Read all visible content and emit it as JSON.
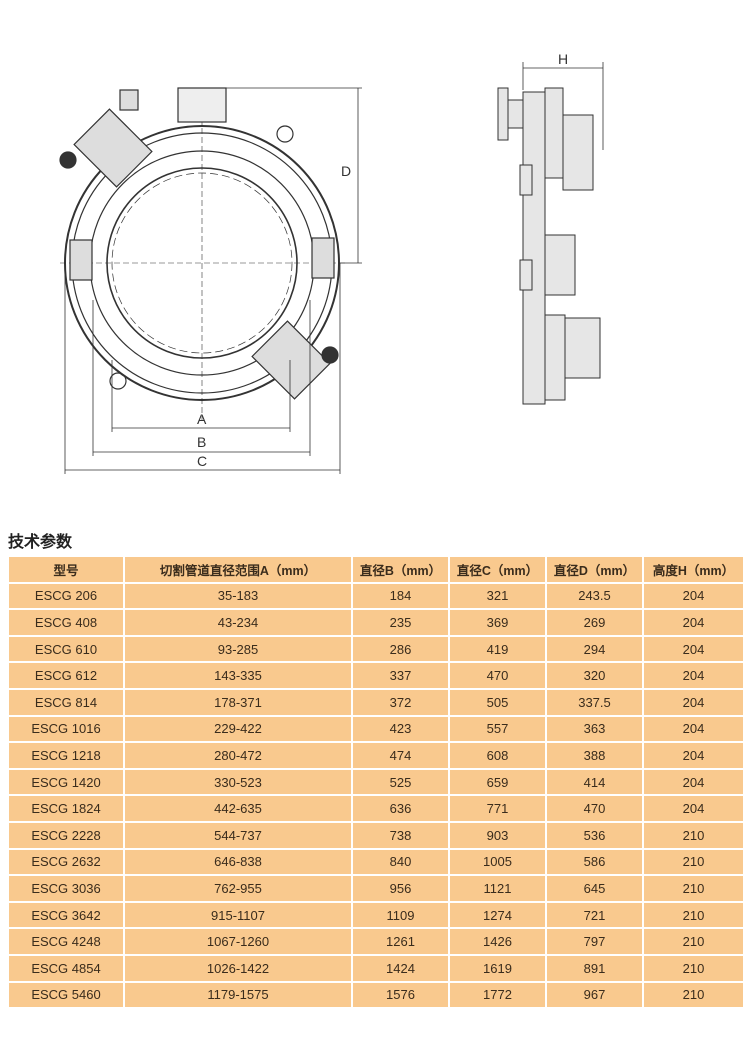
{
  "drawing": {
    "labels": {
      "a": "A",
      "b": "B",
      "c": "C",
      "d": "D",
      "h": "H"
    }
  },
  "section_title": "技术参数",
  "table": {
    "headers": [
      "型号",
      "切割管道直径范围A（mm）",
      "直径B（mm）",
      "直径C（mm）",
      "直径D（mm）",
      "高度H（mm）"
    ],
    "rows": [
      [
        "ESCG 206",
        "35-183",
        "184",
        "321",
        "243.5",
        "204"
      ],
      [
        "ESCG 408",
        "43-234",
        "235",
        "369",
        "269",
        "204"
      ],
      [
        "ESCG 610",
        "93-285",
        "286",
        "419",
        "294",
        "204"
      ],
      [
        "ESCG 612",
        "143-335",
        "337",
        "470",
        "320",
        "204"
      ],
      [
        "ESCG 814",
        "178-371",
        "372",
        "505",
        "337.5",
        "204"
      ],
      [
        "ESCG 1016",
        "229-422",
        "423",
        "557",
        "363",
        "204"
      ],
      [
        "ESCG 1218",
        "280-472",
        "474",
        "608",
        "388",
        "204"
      ],
      [
        "ESCG 1420",
        "330-523",
        "525",
        "659",
        "414",
        "204"
      ],
      [
        "ESCG 1824",
        "442-635",
        "636",
        "771",
        "470",
        "204"
      ],
      [
        "ESCG 2228",
        "544-737",
        "738",
        "903",
        "536",
        "210"
      ],
      [
        "ESCG 2632",
        "646-838",
        "840",
        "1005",
        "586",
        "210"
      ],
      [
        "ESCG 3036",
        "762-955",
        "956",
        "1121",
        "645",
        "210"
      ],
      [
        "ESCG 3642",
        "915-1107",
        "1109",
        "1274",
        "721",
        "210"
      ],
      [
        "ESCG 4248",
        "1067-1260",
        "1261",
        "1426",
        "797",
        "210"
      ],
      [
        "ESCG 4854",
        "1026-1422",
        "1424",
        "1619",
        "891",
        "210"
      ],
      [
        "ESCG 5460",
        "1179-1575",
        "1576",
        "1772",
        "967",
        "210"
      ]
    ]
  }
}
